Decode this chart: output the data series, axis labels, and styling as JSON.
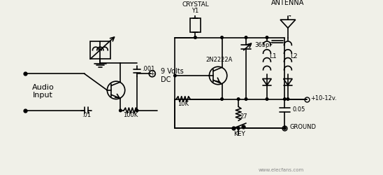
{
  "bg_color": "#f0f0e8",
  "line_color": "#000000",
  "text_color": "#000000",
  "lw": 1.2,
  "figsize": [
    5.48,
    2.5
  ],
  "dpi": 100,
  "watermark": "www.elecfans.com",
  "labels": {
    "audio_input": "Audio\nInput",
    "nine_volts": "9 Volts\nDC",
    "crystal": "CRYSTAL",
    "y1": "Y1",
    "antenna": "ANTENNA",
    "transistor": "2N2222A",
    "c365": "365pF",
    "l1": "L1",
    "l2": "L2",
    "r10k": "10K",
    "r27": "27",
    "key": "KEY",
    "c05": "0.05",
    "ground": "GROUND",
    "c001": ".001",
    "c01": ".01",
    "r100k": "100K",
    "v_supply": "+10-12v."
  }
}
